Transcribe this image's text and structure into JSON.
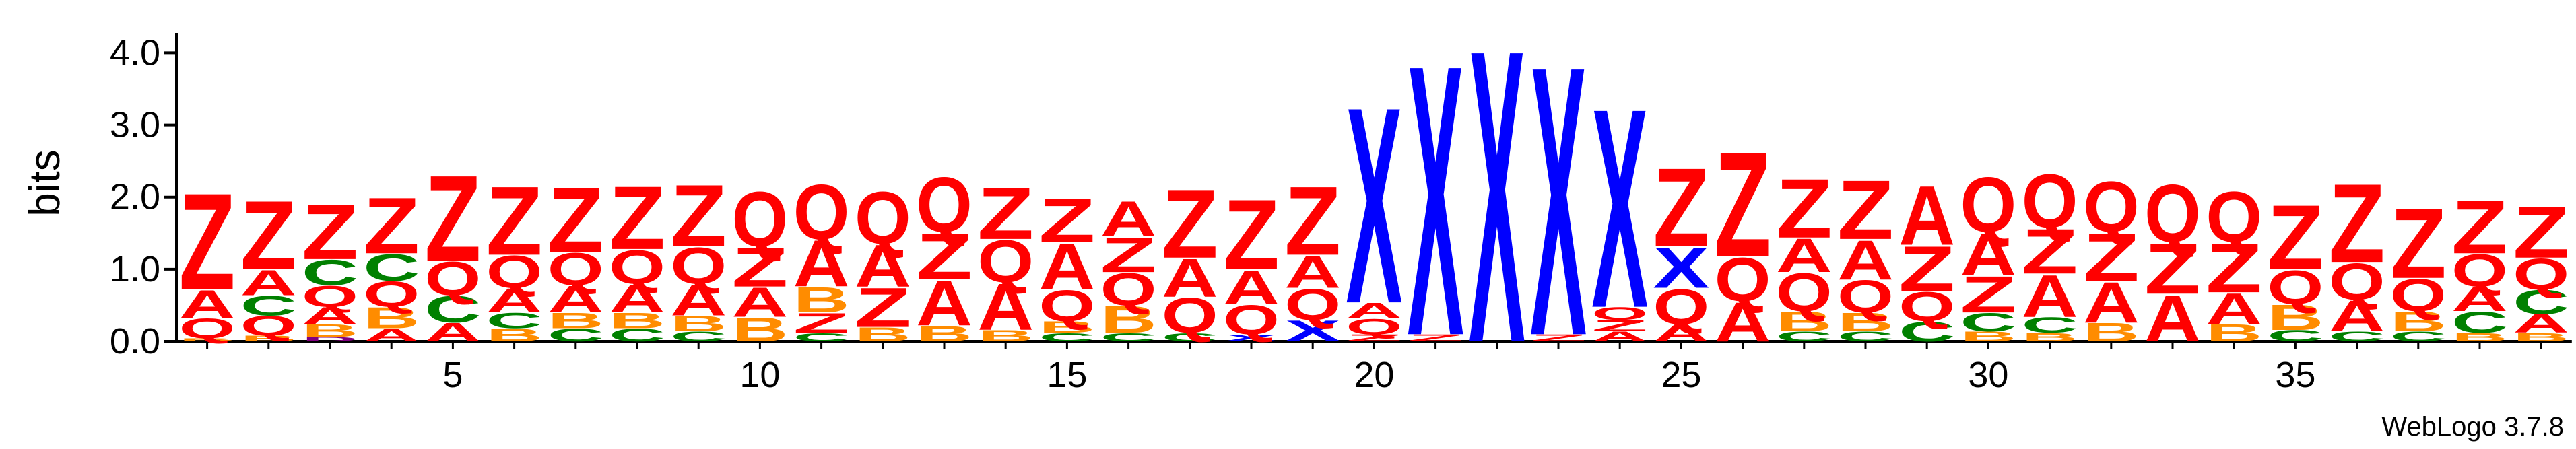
{
  "credit": "WebLogo 3.7.8",
  "chart_data": {
    "type": "sequence-logo",
    "ylabel": "bits",
    "ylim": [
      0,
      4.2
    ],
    "yticks": [
      "0.0",
      "1.0",
      "2.0",
      "3.0",
      "4.0"
    ],
    "xticks": [
      "5",
      "10",
      "15",
      "20",
      "25",
      "30",
      "35"
    ],
    "xtick_positions": [
      5,
      10,
      15,
      20,
      25,
      30,
      35
    ],
    "colors": {
      "Z": "#ff0000",
      "Q": "#ff0000",
      "A": "#ff0000",
      "X": "#0000ff",
      "C": "#008000",
      "B": "#ff8c00",
      "D": "#800080"
    },
    "positions": [
      {
        "pos": 1,
        "stack": [
          [
            "B",
            0.04
          ],
          [
            "Q",
            0.28
          ],
          [
            "A",
            0.4
          ],
          [
            "Z",
            1.38
          ]
        ]
      },
      {
        "pos": 2,
        "stack": [
          [
            "B",
            0.08
          ],
          [
            "Q",
            0.28
          ],
          [
            "C",
            0.28
          ],
          [
            "A",
            0.36
          ],
          [
            "Z",
            0.98
          ]
        ]
      },
      {
        "pos": 3,
        "stack": [
          [
            "D",
            0.06
          ],
          [
            "B",
            0.18
          ],
          [
            "A",
            0.24
          ],
          [
            "Q",
            0.3
          ],
          [
            "C",
            0.36
          ],
          [
            "Z",
            0.78
          ]
        ]
      },
      {
        "pos": 4,
        "stack": [
          [
            "A",
            0.18
          ],
          [
            "B",
            0.3
          ],
          [
            "Q",
            0.36
          ],
          [
            "C",
            0.38
          ],
          [
            "Z",
            0.8
          ]
        ]
      },
      {
        "pos": 5,
        "stack": [
          [
            "A",
            0.26
          ],
          [
            "C",
            0.38
          ],
          [
            "Q",
            0.48
          ],
          [
            "Z",
            1.22
          ]
        ]
      },
      {
        "pos": 6,
        "stack": [
          [
            "B",
            0.18
          ],
          [
            "C",
            0.22
          ],
          [
            "A",
            0.34
          ],
          [
            "Q",
            0.46
          ],
          [
            "Z",
            0.98
          ]
        ]
      },
      {
        "pos": 7,
        "stack": [
          [
            "C",
            0.18
          ],
          [
            "B",
            0.22
          ],
          [
            "A",
            0.38
          ],
          [
            "Q",
            0.46
          ],
          [
            "Z",
            0.92
          ]
        ]
      },
      {
        "pos": 8,
        "stack": [
          [
            "C",
            0.18
          ],
          [
            "B",
            0.22
          ],
          [
            "A",
            0.4
          ],
          [
            "Q",
            0.48
          ],
          [
            "Z",
            0.9
          ]
        ]
      },
      {
        "pos": 9,
        "stack": [
          [
            "C",
            0.14
          ],
          [
            "B",
            0.22
          ],
          [
            "A",
            0.44
          ],
          [
            "Q",
            0.52
          ],
          [
            "Z",
            0.88
          ]
        ]
      },
      {
        "pos": 10,
        "stack": [
          [
            "B",
            0.34
          ],
          [
            "A",
            0.42
          ],
          [
            "Z",
            0.56
          ],
          [
            "Q",
            0.78
          ]
        ]
      },
      {
        "pos": 11,
        "stack": [
          [
            "C",
            0.12
          ],
          [
            "Z",
            0.28
          ],
          [
            "B",
            0.36
          ],
          [
            "A",
            0.66
          ],
          [
            "Q",
            0.78
          ]
        ]
      },
      {
        "pos": 12,
        "stack": [
          [
            "B",
            0.2
          ],
          [
            "Z",
            0.56
          ],
          [
            "A",
            0.6
          ],
          [
            "Q",
            0.74
          ]
        ]
      },
      {
        "pos": 13,
        "stack": [
          [
            "B",
            0.22
          ],
          [
            "A",
            0.64
          ],
          [
            "Z",
            0.66
          ],
          [
            "Q",
            0.78
          ]
        ]
      },
      {
        "pos": 14,
        "stack": [
          [
            "B",
            0.16
          ],
          [
            "A",
            0.66
          ],
          [
            "Q",
            0.6
          ],
          [
            "Z",
            0.74
          ]
        ]
      },
      {
        "pos": 15,
        "stack": [
          [
            "C",
            0.12
          ],
          [
            "B",
            0.16
          ],
          [
            "Q",
            0.44
          ],
          [
            "A",
            0.66
          ],
          [
            "Z",
            0.62
          ]
        ]
      },
      {
        "pos": 16,
        "stack": [
          [
            "C",
            0.12
          ],
          [
            "B",
            0.38
          ],
          [
            "Q",
            0.46
          ],
          [
            "Z",
            0.5
          ],
          [
            "A",
            0.5
          ]
        ]
      },
      {
        "pos": 17,
        "stack": [
          [
            "C",
            0.12
          ],
          [
            "Q",
            0.5
          ],
          [
            "A",
            0.54
          ],
          [
            "Z",
            0.98
          ]
        ]
      },
      {
        "pos": 18,
        "stack": [
          [
            "X",
            0.1
          ],
          [
            "Q",
            0.42
          ],
          [
            "A",
            0.48
          ],
          [
            "Z",
            1.0
          ]
        ]
      },
      {
        "pos": 19,
        "stack": [
          [
            "X",
            0.3
          ],
          [
            "Q",
            0.44
          ],
          [
            "A",
            0.46
          ],
          [
            "Z",
            0.98
          ]
        ]
      },
      {
        "pos": 20,
        "stack": [
          [
            "Z",
            0.1
          ],
          [
            "Q",
            0.22
          ],
          [
            "A",
            0.22
          ],
          [
            "X",
            2.8
          ]
        ]
      },
      {
        "pos": 21,
        "stack": [
          [
            "Z",
            0.1
          ],
          [
            "X",
            3.86
          ]
        ]
      },
      {
        "pos": 22,
        "stack": [
          [
            "X",
            4.18
          ]
        ]
      },
      {
        "pos": 23,
        "stack": [
          [
            "Z",
            0.1
          ],
          [
            "X",
            3.84
          ]
        ]
      },
      {
        "pos": 24,
        "stack": [
          [
            "A",
            0.14
          ],
          [
            "Z",
            0.16
          ],
          [
            "Q",
            0.18
          ],
          [
            "X",
            2.84
          ]
        ]
      },
      {
        "pos": 25,
        "stack": [
          [
            "A",
            0.24
          ],
          [
            "Q",
            0.5
          ],
          [
            "X",
            0.58
          ],
          [
            "Z",
            1.12
          ]
        ]
      },
      {
        "pos": 26,
        "stack": [
          [
            "A",
            0.56
          ],
          [
            "Q",
            0.62
          ],
          [
            "Z",
            1.5
          ]
        ]
      },
      {
        "pos": 27,
        "stack": [
          [
            "C",
            0.14
          ],
          [
            "B",
            0.28
          ],
          [
            "Q",
            0.54
          ],
          [
            "A",
            0.48
          ],
          [
            "Z",
            0.84
          ]
        ]
      },
      {
        "pos": 28,
        "stack": [
          [
            "C",
            0.14
          ],
          [
            "B",
            0.26
          ],
          [
            "Q",
            0.46
          ],
          [
            "A",
            0.56
          ],
          [
            "Z",
            0.84
          ]
        ]
      },
      {
        "pos": 29,
        "stack": [
          [
            "C",
            0.28
          ],
          [
            "Q",
            0.42
          ],
          [
            "Z",
            0.64
          ],
          [
            "A",
            0.84
          ]
        ]
      },
      {
        "pos": 30,
        "stack": [
          [
            "B",
            0.14
          ],
          [
            "C",
            0.26
          ],
          [
            "Z",
            0.52
          ],
          [
            "A",
            0.6
          ],
          [
            "Q",
            0.78
          ]
        ]
      },
      {
        "pos": 31,
        "stack": [
          [
            "B",
            0.12
          ],
          [
            "C",
            0.22
          ],
          [
            "A",
            0.6
          ],
          [
            "Z",
            0.64
          ],
          [
            "Q",
            0.76
          ]
        ]
      },
      {
        "pos": 32,
        "stack": [
          [
            "B",
            0.26
          ],
          [
            "A",
            0.58
          ],
          [
            "Z",
            0.68
          ],
          [
            "Q",
            0.72
          ]
        ]
      },
      {
        "pos": 33,
        "stack": [
          [
            "A",
            0.66
          ],
          [
            "Z",
            0.72
          ],
          [
            "Q",
            0.82
          ]
        ]
      },
      {
        "pos": 34,
        "stack": [
          [
            "B",
            0.24
          ],
          [
            "A",
            0.44
          ],
          [
            "Z",
            0.7
          ],
          [
            "Q",
            0.72
          ]
        ]
      },
      {
        "pos": 35,
        "stack": [
          [
            "C",
            0.16
          ],
          [
            "B",
            0.36
          ],
          [
            "Q",
            0.48
          ],
          [
            "Z",
            0.92
          ]
        ]
      },
      {
        "pos": 36,
        "stack": [
          [
            "C",
            0.14
          ],
          [
            "A",
            0.44
          ],
          [
            "Q",
            0.52
          ],
          [
            "Z",
            1.12
          ]
        ]
      },
      {
        "pos": 37,
        "stack": [
          [
            "C",
            0.14
          ],
          [
            "B",
            0.28
          ],
          [
            "Q",
            0.46
          ],
          [
            "Z",
            1.0
          ]
        ]
      },
      {
        "pos": 38,
        "stack": [
          [
            "B",
            0.12
          ],
          [
            "C",
            0.3
          ],
          [
            "A",
            0.34
          ],
          [
            "Q",
            0.46
          ],
          [
            "Z",
            0.76
          ]
        ]
      },
      {
        "pos": 39,
        "stack": [
          [
            "B",
            0.12
          ],
          [
            "A",
            0.26
          ],
          [
            "C",
            0.34
          ],
          [
            "Q",
            0.44
          ],
          [
            "Z",
            0.74
          ]
        ]
      }
    ]
  }
}
